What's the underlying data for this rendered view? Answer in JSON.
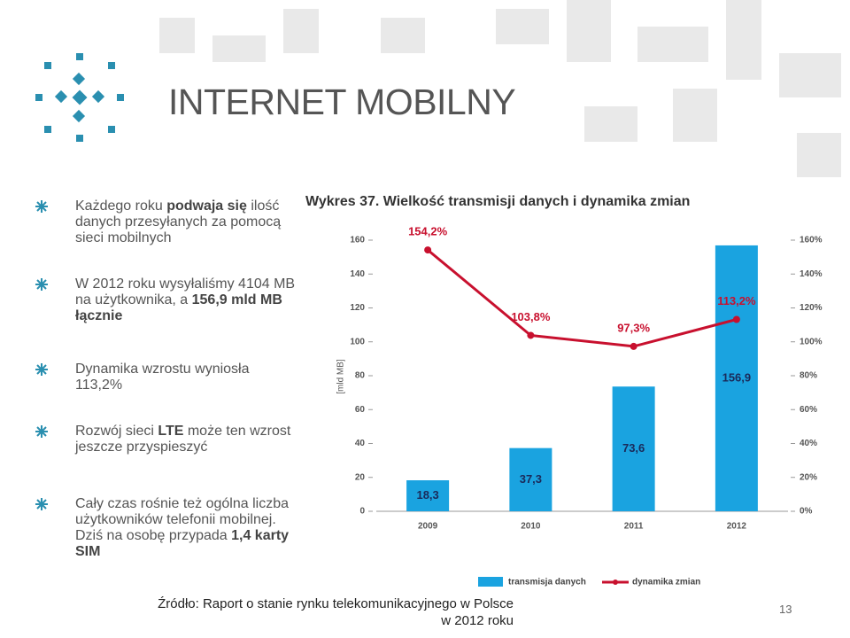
{
  "title": "INTERNET MOBILNY",
  "bullets": [
    [
      {
        "text": "Każdego roku "
      },
      {
        "text": "podwaja się",
        "bold": true
      },
      {
        "text": " ilość danych przesyłanych za pomocą sieci mobilnych"
      }
    ],
    [
      {
        "text": "W 2012 roku wysyłaliśmy 4104 MB na użytkownika, a "
      },
      {
        "text": "156,9 mld MB łącznie",
        "bold": true
      }
    ],
    [
      {
        "text": "Dynamika wzrostu wyniosła 113,2%"
      }
    ],
    [
      {
        "text": "Rozwój sieci "
      },
      {
        "text": "LTE",
        "bold": true
      },
      {
        "text": " może ten wzrost jeszcze przyspieszyć"
      }
    ],
    [
      {
        "text": "Cały czas rośnie też ogólna liczba użytkowników telefonii mobilnej. Dziś na osobę przypada "
      },
      {
        "text": "1,4 karty SIM",
        "bold": true
      }
    ]
  ],
  "source": "Źródło: Raport o stanie rynku telekomunikacyjnego w Polsce w 2012 roku",
  "page_number": "13",
  "chart_data": {
    "type": "combo",
    "title": "Wykres 37. Wielkość transmisji danych i dynamika zmian",
    "y_label": "[mld MB]",
    "categories": [
      "2009",
      "2010",
      "2011",
      "2012"
    ],
    "ylim": [
      0,
      160
    ],
    "yticks": [
      0,
      20,
      40,
      60,
      80,
      100,
      120,
      140,
      160
    ],
    "y2lim": [
      0,
      160
    ],
    "y2ticks": [
      {
        "value": 0,
        "label": "0%"
      },
      {
        "value": 20,
        "label": "20%"
      },
      {
        "value": 40,
        "label": "40%"
      },
      {
        "value": 60,
        "label": "60%"
      },
      {
        "value": 80,
        "label": "80%"
      },
      {
        "value": 100,
        "label": "100%"
      },
      {
        "value": 120,
        "label": "120%"
      },
      {
        "value": 140,
        "label": "140%"
      },
      {
        "value": 160,
        "label": "160%"
      }
    ],
    "series": [
      {
        "name": "transmisja danych",
        "type": "bar",
        "color": "#1aa3e0",
        "values": [
          18.3,
          37.3,
          73.6,
          156.9
        ],
        "value_labels": [
          "18,3",
          "37,3",
          "73,6",
          "156,9"
        ]
      },
      {
        "name": "dynamika zmian",
        "type": "line",
        "axis": "y2",
        "color": "#c8102e",
        "values": [
          154.2,
          103.8,
          97.3,
          113.2
        ],
        "value_labels": [
          "154,2%",
          "103,8%",
          "97,3%",
          "113,2%"
        ]
      }
    ]
  }
}
